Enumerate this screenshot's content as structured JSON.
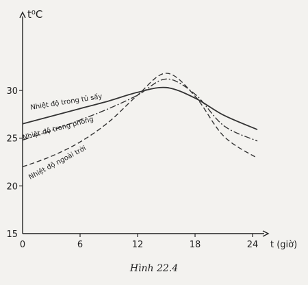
{
  "caption": "Hình 22.4",
  "chart_data": {
    "type": "line",
    "title": "",
    "ylabel": "t⁰C",
    "xlabel": "t (giờ)",
    "xlim": [
      0,
      24
    ],
    "ylim": [
      15,
      35
    ],
    "xticks": [
      0,
      6,
      12,
      18,
      24
    ],
    "yticks": [
      15,
      20,
      25,
      30
    ],
    "grid": false,
    "legend": "none",
    "series": [
      {
        "name": "Nhiệt độ trong tủ sấy",
        "style": "solid",
        "color": "#333333",
        "x": [
          0,
          3,
          6,
          9,
          12,
          15,
          18,
          21,
          24.5
        ],
        "y": [
          26.5,
          27.3,
          28.1,
          28.9,
          29.8,
          30.3,
          29.2,
          27.4,
          25.9
        ]
      },
      {
        "name": "Nhiệt độ trong phòng",
        "style": "dashdot",
        "color": "#333333",
        "x": [
          0,
          3,
          6,
          9,
          12,
          15,
          18,
          21,
          24.5
        ],
        "y": [
          24.8,
          25.8,
          26.9,
          28.1,
          29.5,
          31.2,
          29.6,
          26.3,
          24.7
        ]
      },
      {
        "name": "Nhiệt độ ngoài trời",
        "style": "dashed",
        "color": "#333333",
        "x": [
          0,
          3,
          6,
          9,
          12,
          15,
          18,
          21,
          24.5
        ],
        "y": [
          22.0,
          23.1,
          24.6,
          26.7,
          29.5,
          31.8,
          29.4,
          25.2,
          22.9
        ]
      }
    ]
  }
}
